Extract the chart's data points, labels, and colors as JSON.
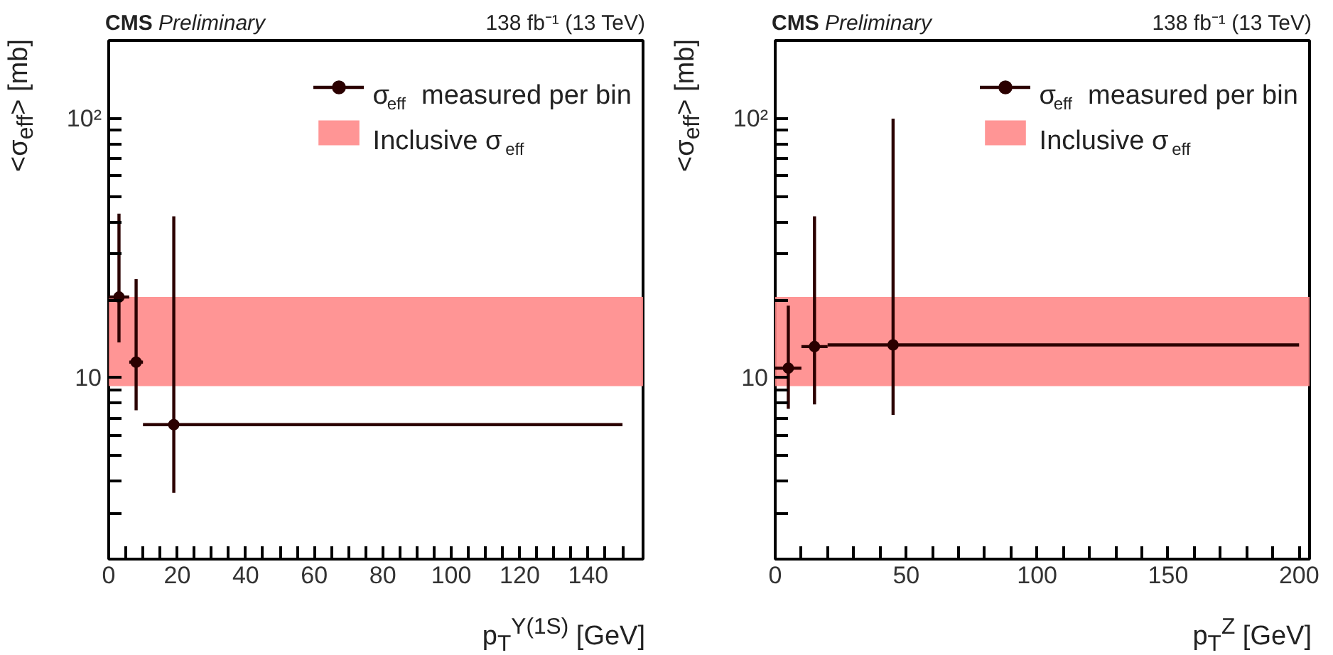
{
  "chart_data": [
    {
      "type": "scatter",
      "title": "CMS Preliminary",
      "subtitle": "138 fb⁻¹ (13 TeV)",
      "xlabel": "p$_{T}$$^{Υ(1S)}$ [GeV]",
      "ylabel": "<σ$_{eff}$> [mb]",
      "log": "y",
      "xlim": [
        0,
        156
      ],
      "ylim": [
        2,
        200
      ],
      "xticks": [
        0,
        {
          "value": 5,
          "label": null
        },
        {
          "value": 10,
          "label": null
        },
        {
          "value": 15,
          "label": null
        },
        20,
        {
          "value": 25,
          "label": null
        },
        {
          "value": 30,
          "label": null
        },
        {
          "value": 35,
          "label": null
        },
        40,
        {
          "value": 45,
          "label": null
        },
        {
          "value": 50,
          "label": null
        },
        {
          "value": 55,
          "label": null
        },
        60,
        {
          "value": 65,
          "label": null
        },
        {
          "value": 70,
          "label": null
        },
        {
          "value": 75,
          "label": null
        },
        80,
        {
          "value": 85,
          "label": null
        },
        {
          "value": 90,
          "label": null
        },
        {
          "value": 95,
          "label": null
        },
        100,
        {
          "value": 105,
          "label": null
        },
        {
          "value": 110,
          "label": null
        },
        {
          "value": 115,
          "label": null
        },
        120,
        {
          "value": 125,
          "label": null
        },
        {
          "value": 130,
          "label": null
        },
        {
          "value": 135,
          "label": null
        },
        140,
        {
          "value": 145,
          "label": null
        },
        {
          "value": 150,
          "label": null
        }
      ],
      "yticks": [
        {
          "value": 2,
          "label": null
        },
        {
          "value": 3,
          "label": null
        },
        {
          "value": 4,
          "label": null
        },
        {
          "value": 5,
          "label": null
        },
        {
          "value": 6,
          "label": null
        },
        {
          "value": 7,
          "label": null
        },
        {
          "value": 8,
          "label": null
        },
        {
          "value": 9,
          "label": null
        },
        10,
        {
          "value": 20,
          "label": null
        },
        {
          "value": 30,
          "label": null
        },
        {
          "value": 40,
          "label": null
        },
        {
          "value": 50,
          "label": null
        },
        {
          "value": 60,
          "label": null
        },
        {
          "value": 70,
          "label": null
        },
        {
          "value": 80,
          "label": null
        },
        {
          "value": 90,
          "label": null
        },
        {
          "value": 100,
          "label": "10²"
        },
        {
          "value": 200,
          "label": null
        }
      ],
      "grid": false,
      "legend": "top right",
      "marker": "circle",
      "series": [
        {
          "name": "σ$_{eff}$ measured per bin",
          "color": "#2b0000",
          "x": [
            3,
            8,
            19
          ],
          "values": [
            20.5,
            11.5,
            6.6
          ],
          "errors": [
            [
              13.7,
              43
            ],
            [
              7.5,
              24
            ],
            [
              3.6,
              42
            ]
          ],
          "xerrors": [
            [
              0,
              6
            ],
            [
              6,
              10
            ],
            [
              10,
              150
            ]
          ]
        }
      ],
      "bands": [
        {
          "axis": "y",
          "from": 9.3,
          "to": 20.5,
          "label": "Inclusive σ$_{eff}$",
          "color": "#ff8a8a"
        }
      ]
    },
    {
      "type": "scatter",
      "title": "CMS Preliminary",
      "subtitle": "138 fb⁻¹ (13 TeV)",
      "xlabel": "p$_{T}$$^{Z}$ [GeV]",
      "ylabel": "<σ$_{eff}$> [mb]",
      "log": "y",
      "xlim": [
        0,
        204
      ],
      "ylim": [
        2,
        200
      ],
      "xticks": [
        0,
        {
          "value": 10,
          "label": null
        },
        {
          "value": 20,
          "label": null
        },
        {
          "value": 30,
          "label": null
        },
        {
          "value": 40,
          "label": null
        },
        50,
        {
          "value": 60,
          "label": null
        },
        {
          "value": 70,
          "label": null
        },
        {
          "value": 80,
          "label": null
        },
        {
          "value": 90,
          "label": null
        },
        100,
        {
          "value": 110,
          "label": null
        },
        {
          "value": 120,
          "label": null
        },
        {
          "value": 130,
          "label": null
        },
        {
          "value": 140,
          "label": null
        },
        150,
        {
          "value": 160,
          "label": null
        },
        {
          "value": 170,
          "label": null
        },
        {
          "value": 180,
          "label": null
        },
        {
          "value": 190,
          "label": null
        },
        200
      ],
      "yticks": [
        {
          "value": 2,
          "label": null
        },
        {
          "value": 3,
          "label": null
        },
        {
          "value": 4,
          "label": null
        },
        {
          "value": 5,
          "label": null
        },
        {
          "value": 6,
          "label": null
        },
        {
          "value": 7,
          "label": null
        },
        {
          "value": 8,
          "label": null
        },
        {
          "value": 9,
          "label": null
        },
        10,
        {
          "value": 20,
          "label": null
        },
        {
          "value": 30,
          "label": null
        },
        {
          "value": 40,
          "label": null
        },
        {
          "value": 50,
          "label": null
        },
        {
          "value": 60,
          "label": null
        },
        {
          "value": 70,
          "label": null
        },
        {
          "value": 80,
          "label": null
        },
        {
          "value": 90,
          "label": null
        },
        {
          "value": 100,
          "label": "10²"
        },
        {
          "value": 200,
          "label": null
        }
      ],
      "grid": false,
      "legend": "top right",
      "marker": "circle",
      "series": [
        {
          "name": "σ$_{eff}$ measured per bin",
          "color": "#2b0000",
          "x": [
            5,
            15,
            45
          ],
          "values": [
            10.9,
            13.2,
            13.4
          ],
          "errors": [
            [
              7.6,
              19
            ],
            [
              7.9,
              42
            ],
            [
              7.2,
              100
            ]
          ],
          "xerrors": [
            [
              0,
              10
            ],
            [
              10,
              20
            ],
            [
              20,
              200
            ]
          ]
        }
      ],
      "bands": [
        {
          "axis": "y",
          "from": 9.3,
          "to": 20.5,
          "label": "Inclusive σ$_{eff}$",
          "color": "#ff8a8a"
        }
      ]
    }
  ]
}
